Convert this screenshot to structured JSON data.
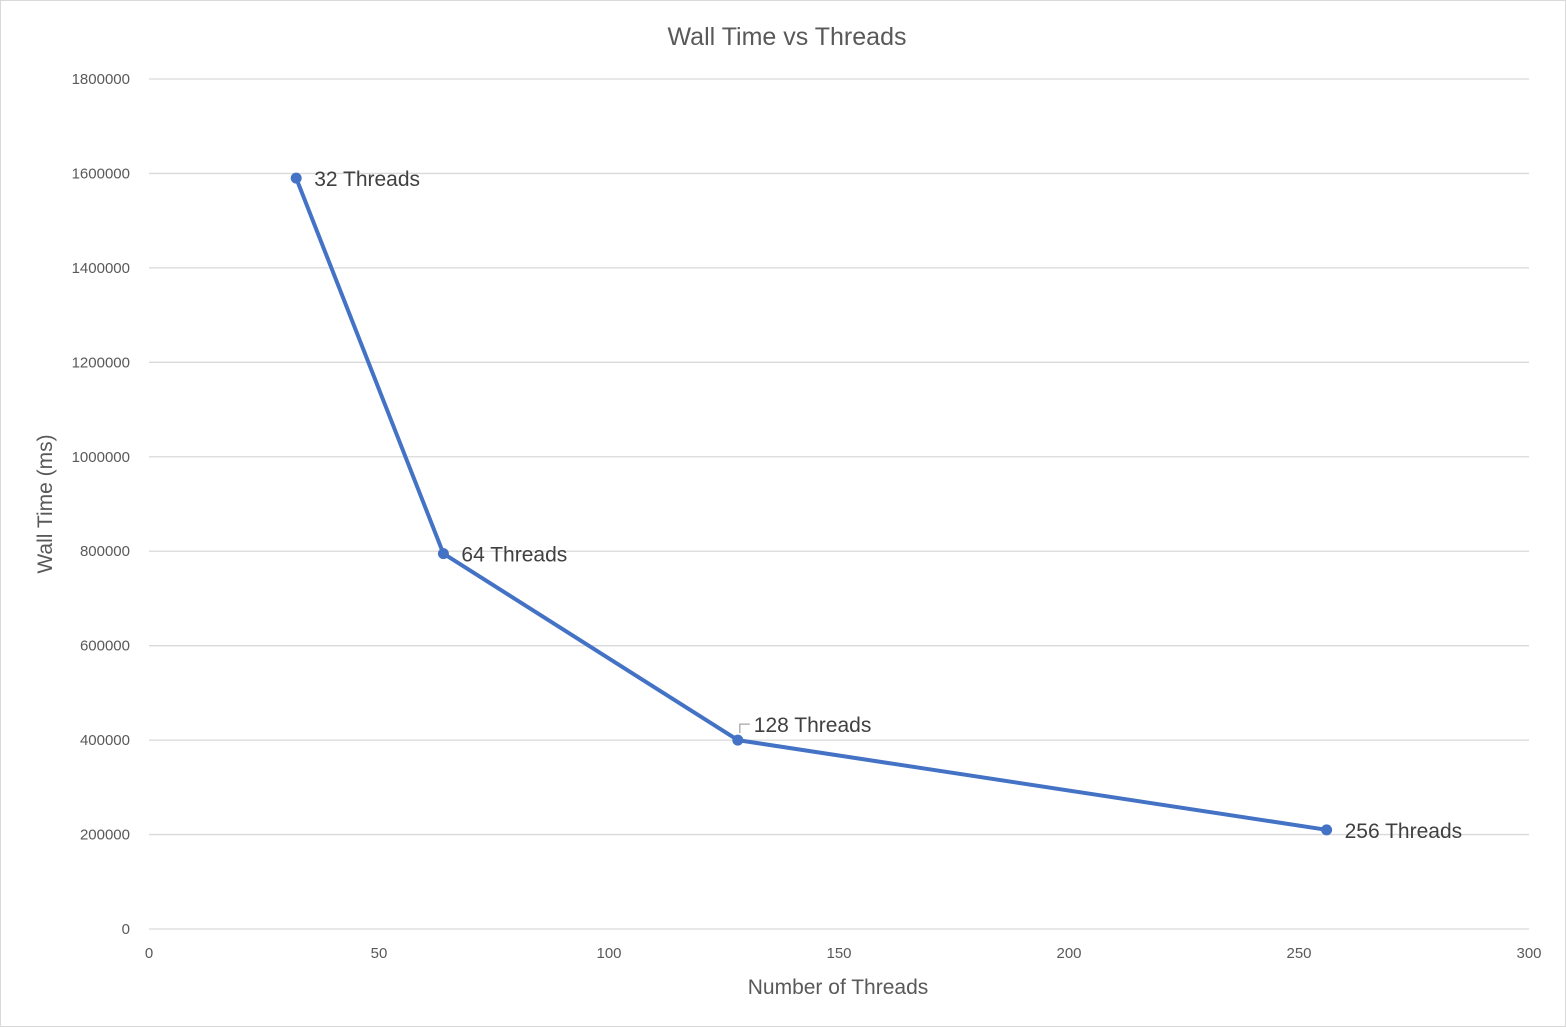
{
  "chart_data": {
    "type": "scatter",
    "title": "Wall Time vs Threads",
    "xlabel": "Number of Threads",
    "ylabel": "Wall Time (ms)",
    "xlim": [
      0,
      300
    ],
    "ylim": [
      0,
      1800000
    ],
    "x_ticks": [
      "0",
      "50",
      "100",
      "150",
      "200",
      "250",
      "300"
    ],
    "y_ticks": [
      "0",
      "200000",
      "400000",
      "600000",
      "800000",
      "1000000",
      "1200000",
      "1400000",
      "1600000",
      "1800000"
    ],
    "grid": true,
    "legend": "none",
    "line_style": "straight lines with markers",
    "series_color": "#4472c4",
    "gridline_color": "#d9d9d9",
    "series": [
      {
        "points": [
          {
            "x": 32,
            "y": 1590000,
            "label": "32 Threads"
          },
          {
            "x": 64,
            "y": 795000,
            "label": "64 Threads"
          },
          {
            "x": 128,
            "y": 400000,
            "label": "128 Threads"
          },
          {
            "x": 256,
            "y": 210000,
            "label": "256 Threads"
          }
        ]
      }
    ]
  }
}
